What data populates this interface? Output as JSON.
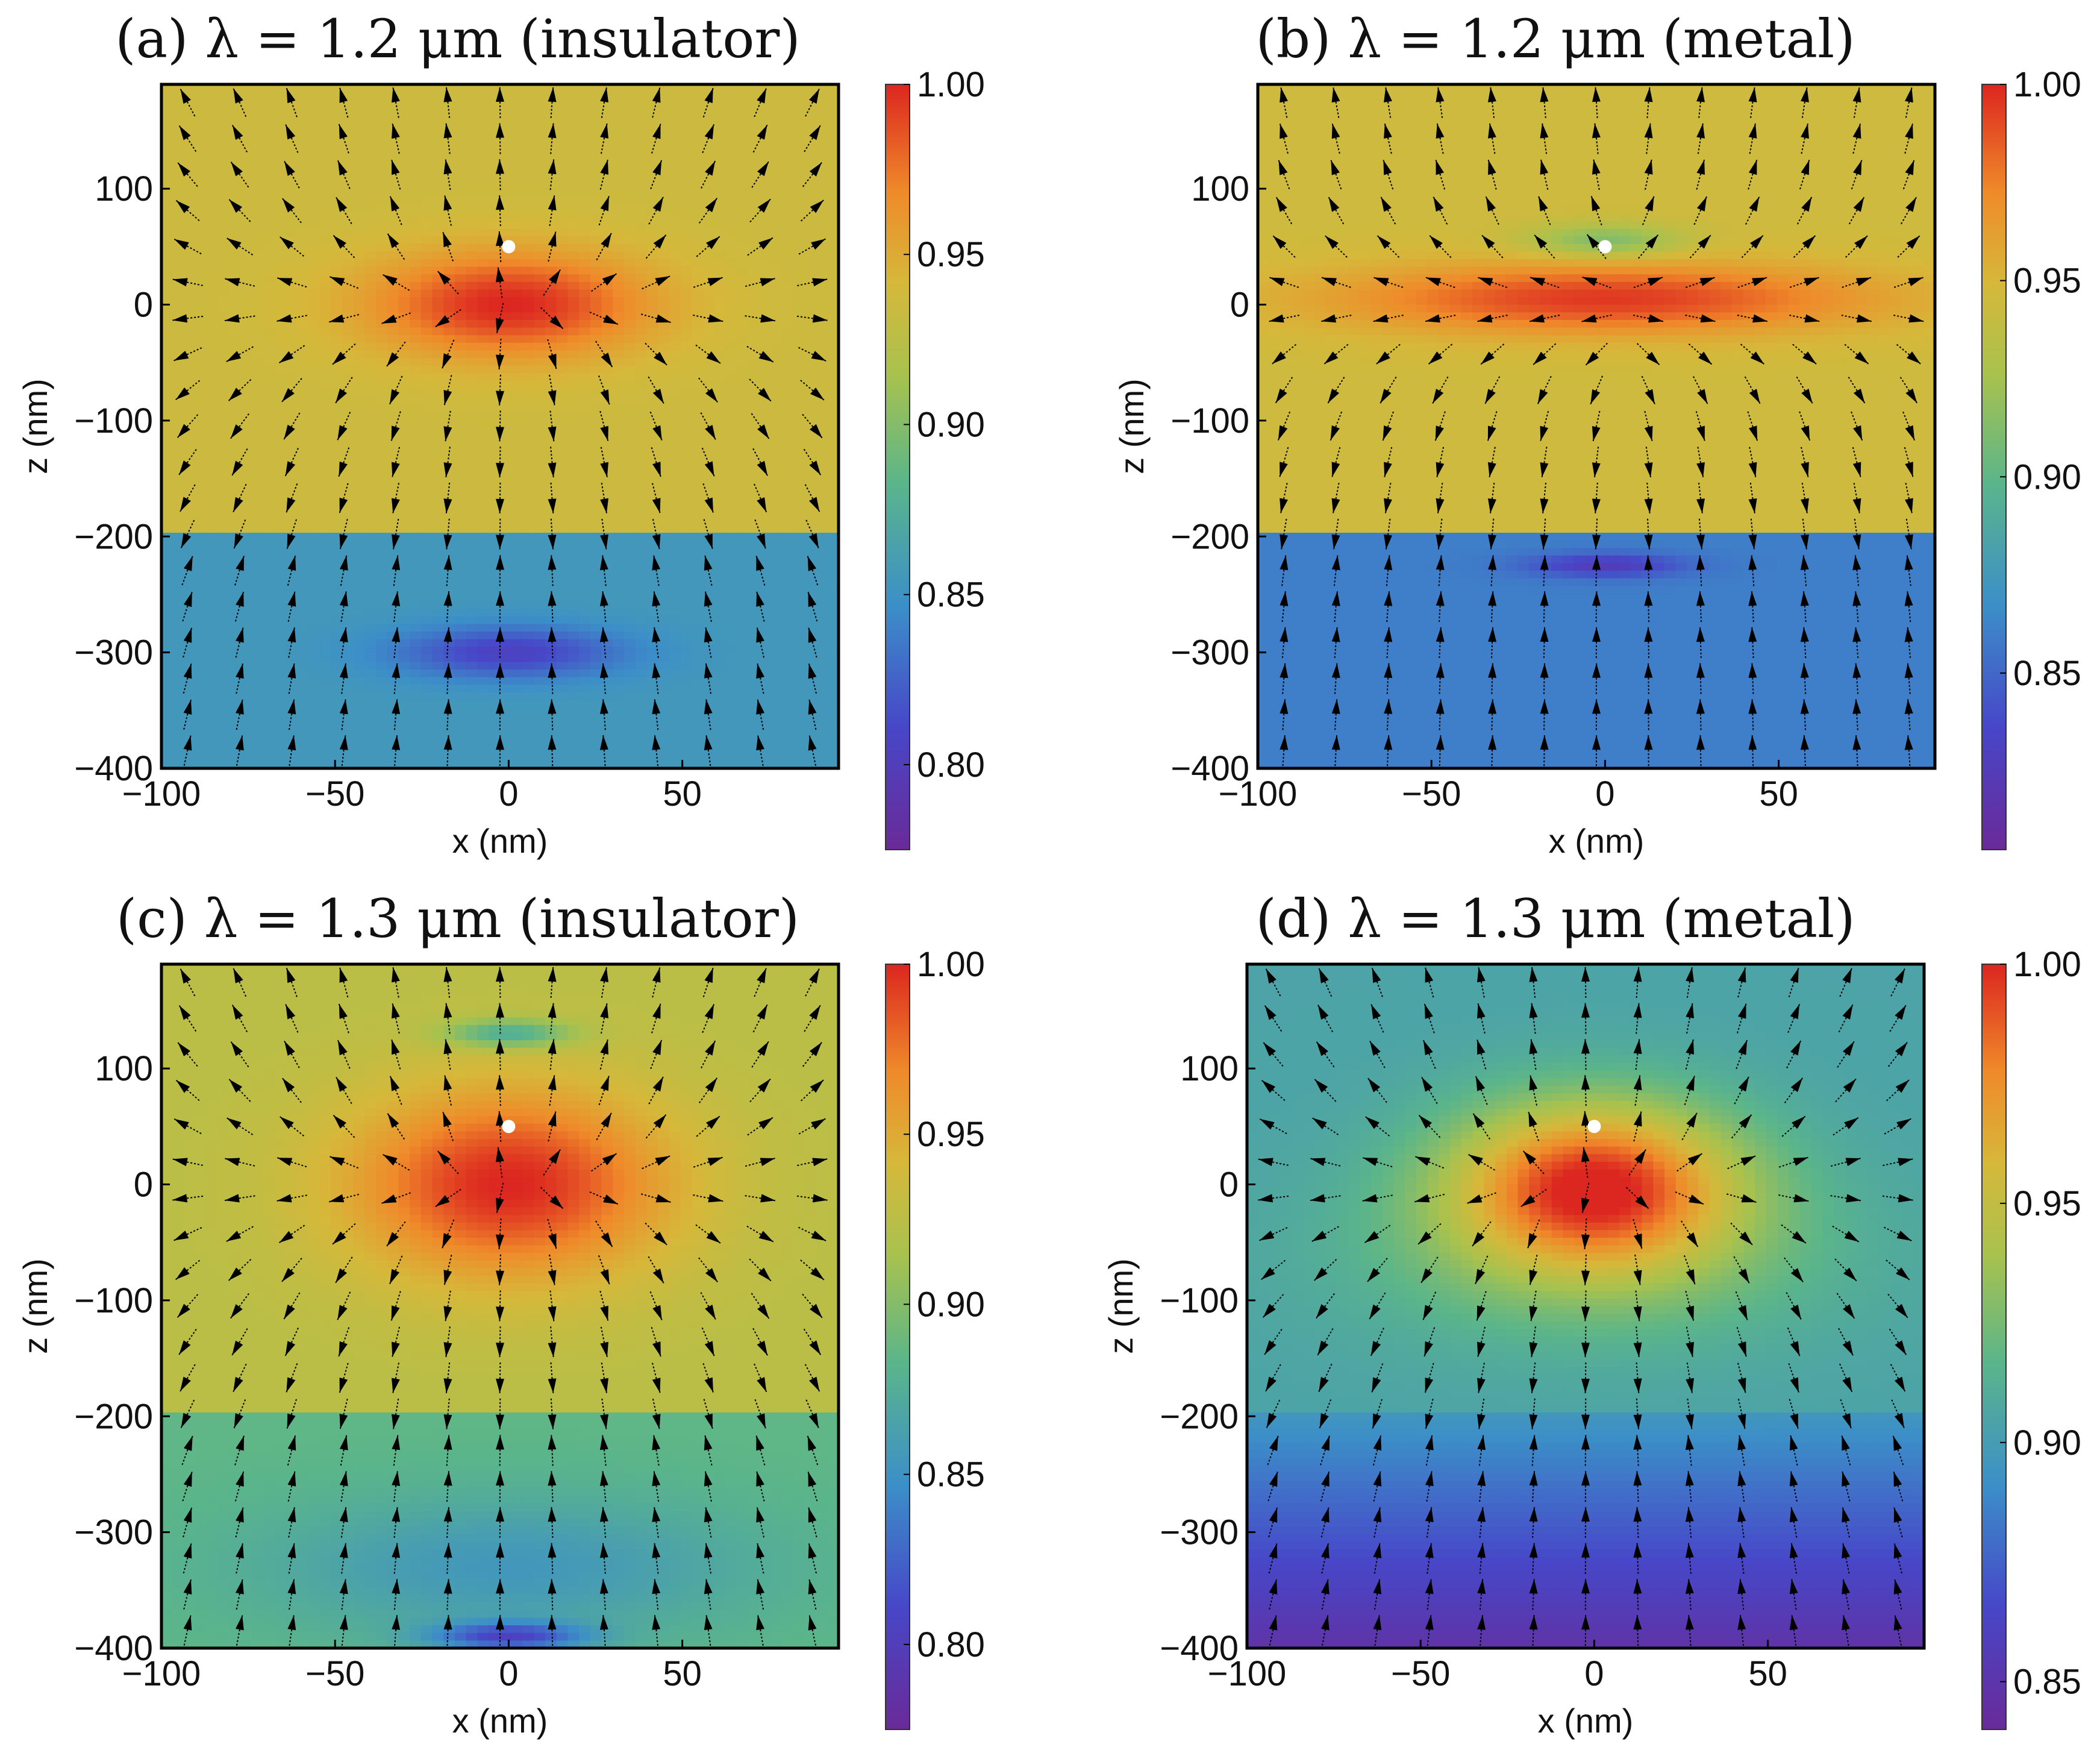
{
  "chart_data": [
    {
      "type": "heatmap",
      "panel": "a",
      "title": "(a) λ = 1.2 μm (insulator)",
      "xlabel": "x (nm)",
      "ylabel": "z (nm)",
      "xlim": [
        -100,
        95
      ],
      "ylim": [
        -400,
        190
      ],
      "xticks": [
        -100,
        -50,
        0,
        50
      ],
      "yticks": [
        -400,
        -300,
        -200,
        -100,
        0,
        100
      ],
      "colorbar": {
        "range": [
          0.775,
          1.0
        ],
        "ticks": [
          "0.80",
          "0.85",
          "0.90",
          "0.95",
          "1.00"
        ]
      },
      "interface_z": -200,
      "emitter": {
        "x": 0,
        "z": 50
      },
      "field": {
        "upper_base": 0.935,
        "lower_base": 0.855,
        "hotspots": [
          {
            "x": 0,
            "z": 0,
            "amp": 0.065,
            "sx": 40,
            "sz": 45
          },
          {
            "x": 0,
            "z": -300,
            "amp": -0.05,
            "sx": 32,
            "sz": 22
          }
        ]
      },
      "arrows_pattern": "dipole"
    },
    {
      "type": "heatmap",
      "panel": "b",
      "title": "(b) λ = 1.2 μm (metal)",
      "xlabel": "x (nm)",
      "ylabel": "z (nm)",
      "xlim": [
        -100,
        95
      ],
      "ylim": [
        -400,
        190
      ],
      "xticks": [
        -100,
        -50,
        0,
        50
      ],
      "yticks": [
        -400,
        -300,
        -200,
        -100,
        0,
        100
      ],
      "colorbar": {
        "range": [
          0.805,
          1.0
        ],
        "ticks": [
          "0.85",
          "0.90",
          "0.95",
          "1.00"
        ]
      },
      "interface_z": -200,
      "emitter": {
        "x": 0,
        "z": 50
      },
      "field": {
        "upper_base": 0.945,
        "lower_base": 0.86,
        "hotspots": [
          {
            "x": 0,
            "z": 5,
            "amp": 0.05,
            "sx": 75,
            "sz": 30
          },
          {
            "x": 0,
            "z": 55,
            "amp": -0.035,
            "sx": 22,
            "sz": 14
          },
          {
            "x": 0,
            "z": -225,
            "amp": -0.035,
            "sx": 22,
            "sz": 10
          }
        ]
      },
      "arrows_pattern": "quad"
    },
    {
      "type": "heatmap",
      "panel": "c",
      "title": "(c) λ = 1.3 μm (insulator)",
      "xlabel": "x (nm)",
      "ylabel": "z (nm)",
      "xlim": [
        -100,
        95
      ],
      "ylim": [
        -400,
        190
      ],
      "xticks": [
        -100,
        -50,
        0,
        50
      ],
      "yticks": [
        -400,
        -300,
        -200,
        -100,
        0,
        100
      ],
      "colorbar": {
        "range": [
          0.775,
          1.0
        ],
        "ticks": [
          "0.80",
          "0.85",
          "0.90",
          "0.95",
          "1.00"
        ]
      },
      "interface_z": -200,
      "emitter": {
        "x": 0,
        "z": 50
      },
      "field": {
        "upper_base": 0.925,
        "lower_base": 0.885,
        "hotspots": [
          {
            "x": 0,
            "z": 0,
            "amp": 0.075,
            "sx": 45,
            "sz": 80
          },
          {
            "x": 0,
            "z": 130,
            "amp": -0.055,
            "sx": 18,
            "sz": 12
          },
          {
            "x": 0,
            "z": -390,
            "amp": -0.07,
            "sx": 22,
            "sz": 12
          },
          {
            "x": 0,
            "z": -330,
            "amp": -0.03,
            "sx": 70,
            "sz": 60
          }
        ]
      },
      "arrows_pattern": "dipole"
    },
    {
      "type": "heatmap",
      "panel": "d",
      "title": "(d) λ = 1.3 μm (metal)",
      "xlabel": "x (nm)",
      "ylabel": "z (nm)",
      "xlim": [
        -100,
        95
      ],
      "ylim": [
        -400,
        190
      ],
      "xticks": [
        -100,
        -50,
        0,
        50
      ],
      "yticks": [
        -400,
        -300,
        -200,
        -100,
        0,
        100
      ],
      "colorbar": {
        "range": [
          0.84,
          1.0
        ],
        "ticks": [
          "0.85",
          "0.90",
          "0.95",
          "1.00"
        ]
      },
      "interface_z": -200,
      "emitter": {
        "x": 0,
        "z": 50
      },
      "field": {
        "upper_base": 0.905,
        "lower_gradient": [
          0.895,
          0.848
        ],
        "hotspots": [
          {
            "x": 0,
            "z": 0,
            "amp": 0.09,
            "sx": 40,
            "sz": 70
          },
          {
            "x": 0,
            "z": -60,
            "amp": 0.02,
            "sx": 70,
            "sz": 80
          }
        ]
      },
      "arrows_pattern": "dipole"
    }
  ]
}
